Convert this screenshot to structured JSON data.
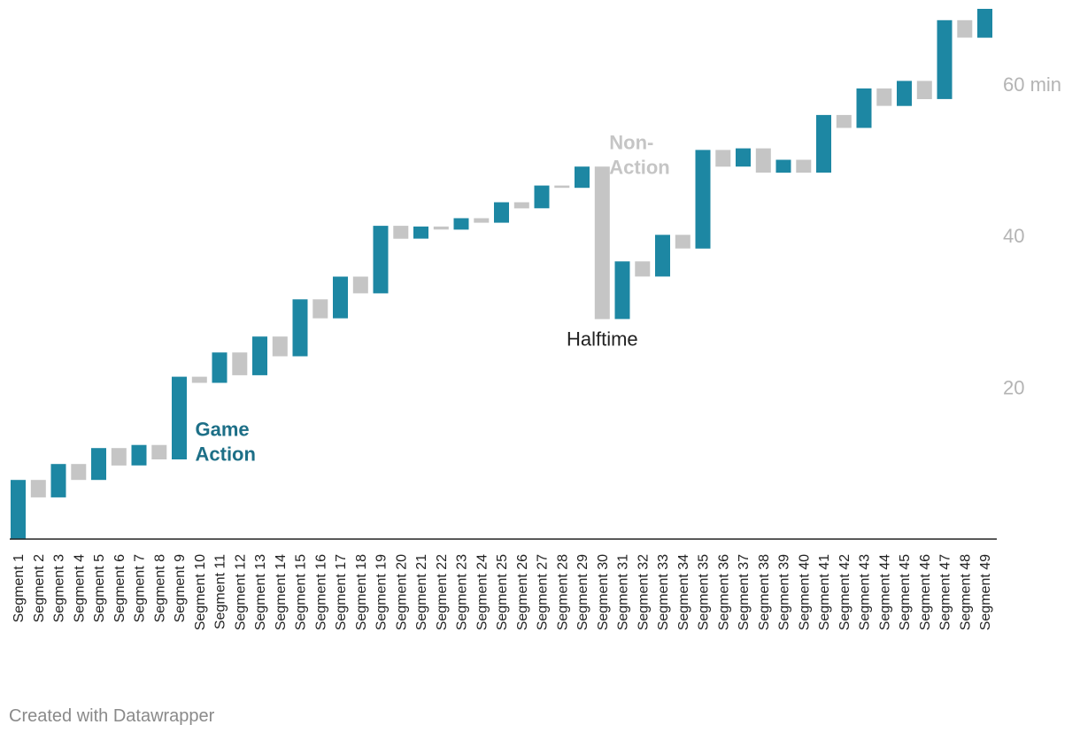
{
  "chart_data": {
    "type": "bar",
    "subtype": "waterfall",
    "categories": [
      "Segment 1",
      "Segment 2",
      "Segment 3",
      "Segment 4",
      "Segment 5",
      "Segment 6",
      "Segment 7",
      "Segment 8",
      "Segment 9",
      "Segment 10",
      "Segment 11",
      "Segment 12",
      "Segment 13",
      "Segment 14",
      "Segment 15",
      "Segment 16",
      "Segment 17",
      "Segment 18",
      "Segment 19",
      "Segment 20",
      "Segment 21",
      "Segment 22",
      "Segment 23",
      "Segment 24",
      "Segment 25",
      "Segment 26",
      "Segment 27",
      "Segment 28",
      "Segment 29",
      "Segment 30",
      "Segment 31",
      "Segment 32",
      "Segment 33",
      "Segment 34",
      "Segment 35",
      "Segment 36",
      "Segment 37",
      "Segment 38",
      "Segment 39",
      "Segment 40",
      "Segment 41",
      "Segment 42",
      "Segment 43",
      "Segment 44",
      "Segment 45",
      "Segment 46",
      "Segment 47",
      "Segment 48",
      "Segment 49"
    ],
    "series": [
      {
        "name": "Game Action",
        "color": "#1d87a3",
        "segments": [
          {
            "index": 1,
            "start": 0.0,
            "end": 7.8
          },
          {
            "index": 3,
            "start": 5.5,
            "end": 9.9
          },
          {
            "index": 5,
            "start": 7.8,
            "end": 12.0
          },
          {
            "index": 7,
            "start": 9.7,
            "end": 12.4
          },
          {
            "index": 9,
            "start": 10.5,
            "end": 21.4
          },
          {
            "index": 11,
            "start": 20.6,
            "end": 24.6
          },
          {
            "index": 13,
            "start": 21.6,
            "end": 26.7
          },
          {
            "index": 15,
            "start": 24.1,
            "end": 31.6
          },
          {
            "index": 17,
            "start": 29.1,
            "end": 34.6
          },
          {
            "index": 19,
            "start": 32.4,
            "end": 41.3
          },
          {
            "index": 21,
            "start": 39.6,
            "end": 41.2
          },
          {
            "index": 23,
            "start": 40.8,
            "end": 42.3
          },
          {
            "index": 25,
            "start": 41.7,
            "end": 44.4
          },
          {
            "index": 27,
            "start": 43.6,
            "end": 46.6
          },
          {
            "index": 29,
            "start": 46.3,
            "end": 49.1
          },
          {
            "index": 31,
            "start": 29.0,
            "end": 36.6
          },
          {
            "index": 33,
            "start": 34.6,
            "end": 40.1
          },
          {
            "index": 35,
            "start": 38.3,
            "end": 51.3
          },
          {
            "index": 37,
            "start": 49.1,
            "end": 51.5
          },
          {
            "index": 39,
            "start": 48.3,
            "end": 50.0
          },
          {
            "index": 41,
            "start": 48.3,
            "end": 55.9
          },
          {
            "index": 43,
            "start": 54.2,
            "end": 59.4
          },
          {
            "index": 45,
            "start": 57.1,
            "end": 60.4
          },
          {
            "index": 47,
            "start": 58.0,
            "end": 68.4
          },
          {
            "index": 49,
            "start": 66.1,
            "end": 69.9
          }
        ]
      },
      {
        "name": "Non-Action",
        "color": "#c5c5c5",
        "segments": [
          {
            "index": 2,
            "start": 5.5,
            "end": 7.8
          },
          {
            "index": 4,
            "start": 7.8,
            "end": 9.9
          },
          {
            "index": 6,
            "start": 9.7,
            "end": 12.0
          },
          {
            "index": 8,
            "start": 10.5,
            "end": 12.4
          },
          {
            "index": 10,
            "start": 20.6,
            "end": 21.4
          },
          {
            "index": 12,
            "start": 21.6,
            "end": 24.6
          },
          {
            "index": 14,
            "start": 24.1,
            "end": 26.7
          },
          {
            "index": 16,
            "start": 29.1,
            "end": 31.6
          },
          {
            "index": 18,
            "start": 32.4,
            "end": 34.6
          },
          {
            "index": 20,
            "start": 39.6,
            "end": 41.3
          },
          {
            "index": 22,
            "start": 40.8,
            "end": 41.2
          },
          {
            "index": 24,
            "start": 41.7,
            "end": 42.3
          },
          {
            "index": 26,
            "start": 43.6,
            "end": 44.4
          },
          {
            "index": 28,
            "start": 46.3,
            "end": 46.6
          },
          {
            "index": 30,
            "start": 29.0,
            "end": 49.1
          },
          {
            "index": 32,
            "start": 34.6,
            "end": 36.6
          },
          {
            "index": 34,
            "start": 38.3,
            "end": 40.1
          },
          {
            "index": 36,
            "start": 49.1,
            "end": 51.3
          },
          {
            "index": 38,
            "start": 48.3,
            "end": 51.5
          },
          {
            "index": 40,
            "start": 48.3,
            "end": 50.0
          },
          {
            "index": 42,
            "start": 54.2,
            "end": 55.9
          },
          {
            "index": 44,
            "start": 57.1,
            "end": 59.4
          },
          {
            "index": 46,
            "start": 58.0,
            "end": 60.4
          },
          {
            "index": 48,
            "start": 66.1,
            "end": 68.4
          }
        ]
      }
    ],
    "y_ticks": [
      {
        "value": 20,
        "label": "20"
      },
      {
        "value": 40,
        "label": "40"
      },
      {
        "value": 60,
        "label": "60 min"
      }
    ],
    "ylim": [
      0,
      70
    ],
    "grid": false,
    "y_axis_side": "right",
    "annotations": [
      {
        "lines": [
          "Game",
          "Action"
        ],
        "color": "#1d6f87",
        "bold": true,
        "near_index": 9,
        "anchor_value": 13.6
      },
      {
        "lines": [
          "Non-",
          "Action"
        ],
        "color": "#c5c5c5",
        "bold": true,
        "near_index": 30,
        "anchor_value": 51.4
      },
      {
        "lines": [
          "Halftime"
        ],
        "color": "#222222",
        "bold": false,
        "near_index": 30,
        "anchor_value": 25.5
      }
    ]
  },
  "footer": {
    "credit": "Created with Datawrapper"
  }
}
